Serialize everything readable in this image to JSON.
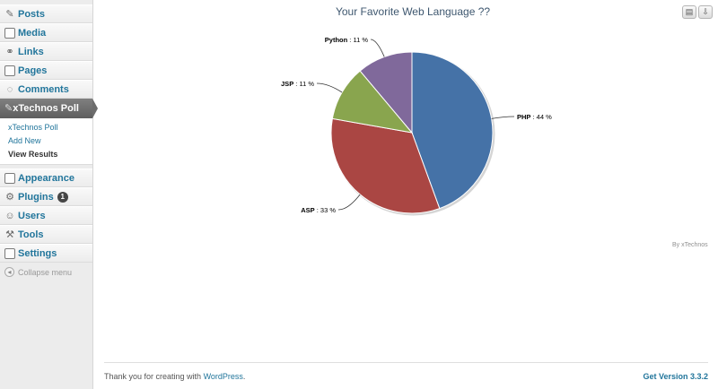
{
  "sidebar": {
    "items_top": [
      {
        "label": "Posts",
        "icon": "pushpin-icon"
      },
      {
        "label": "Media",
        "icon": "media-icon"
      },
      {
        "label": "Links",
        "icon": "link-icon"
      },
      {
        "label": "Pages",
        "icon": "pages-icon"
      },
      {
        "label": "Comments",
        "icon": "comment-icon"
      }
    ],
    "active": {
      "label": "xTechnos Poll",
      "icon": "pushpin-icon"
    },
    "submenu": [
      {
        "label": "xTechnos Poll"
      },
      {
        "label": "Add New"
      },
      {
        "label": "View Results"
      }
    ],
    "items_bottom": [
      {
        "label": "Appearance",
        "icon": "appearance-icon"
      },
      {
        "label": "Plugins",
        "icon": "plugin-icon",
        "badge": "1"
      },
      {
        "label": "Users",
        "icon": "users-icon"
      },
      {
        "label": "Tools",
        "icon": "tools-icon"
      },
      {
        "label": "Settings",
        "icon": "settings-icon"
      }
    ],
    "collapse_label": "Collapse menu"
  },
  "toolbar": {
    "print_icon": "print-icon",
    "download_icon": "download-icon"
  },
  "chart_data": {
    "type": "pie",
    "title": "Your Favorite Web Language ??",
    "slices": [
      {
        "name": "PHP",
        "value": 44,
        "label_text": " : 44 %",
        "color": "#4572a7"
      },
      {
        "name": "ASP",
        "value": 33,
        "label_text": " : 33 %",
        "color": "#aa4643"
      },
      {
        "name": "JSP",
        "value": 11,
        "label_text": " : 11 %",
        "color": "#89a54e"
      },
      {
        "name": "Python",
        "value": 11,
        "label_text": " : 11 %",
        "color": "#80699b"
      }
    ],
    "credit": "By xTechnos"
  },
  "footer": {
    "text_before": "Thank you for creating with ",
    "link": "WordPress",
    "text_after": ".",
    "version": "Get Version 3.3.2"
  }
}
